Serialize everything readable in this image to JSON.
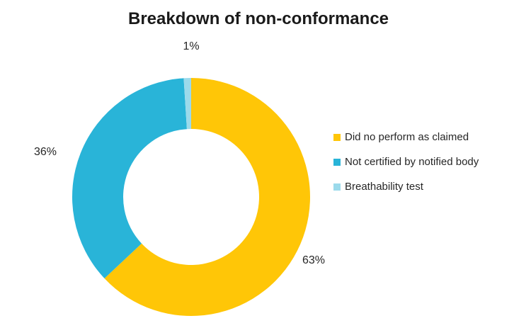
{
  "chart_data": {
    "type": "pie",
    "subtype": "donut",
    "title": "Breakdown of non-conformance",
    "series": [
      {
        "label": "Did no perform as claimed",
        "value": 63,
        "display": "63%",
        "color": "#FFC607"
      },
      {
        "label": "Not certified by notified body",
        "value": 36,
        "display": "36%",
        "color": "#29B4D8"
      },
      {
        "label": "Breathability test",
        "value": 1,
        "display": "1%",
        "color": "#9BDAEB"
      }
    ],
    "start_angle_deg": 0,
    "direction": "clockwise",
    "donut_hole_ratio": 0.57,
    "legend_position": "right",
    "data_labels": "outside-percent",
    "background_color": "#FFFFFF",
    "text_color": "#262626"
  }
}
